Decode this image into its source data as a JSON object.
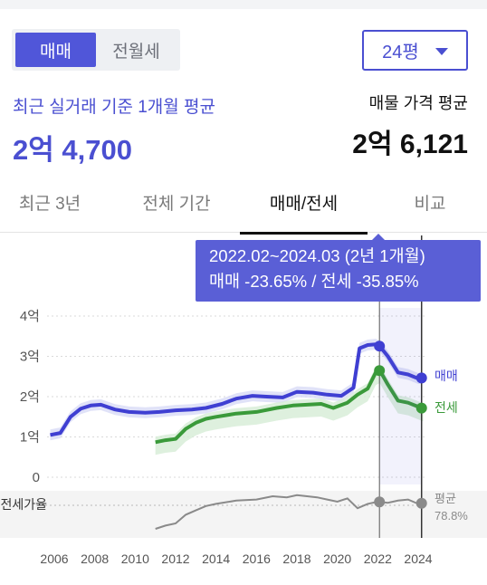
{
  "trade_toggle": {
    "options": [
      "매매",
      "전월세"
    ],
    "selected": "매매"
  },
  "size_select": {
    "value": "24평"
  },
  "summary": {
    "recent_label": "최근 실거래 기준 1개월 평균",
    "recent_value": "2억 4,700",
    "listing_label": "매물 가격 평균",
    "listing_value": "2억 6,121"
  },
  "tabs": [
    {
      "label": "최근 3년",
      "active": false
    },
    {
      "label": "전체 기간",
      "active": false
    },
    {
      "label": "매매/전세",
      "active": true
    },
    {
      "label": "비교",
      "active": false
    }
  ],
  "tooltip": {
    "line1": "2022.02~2024.03 (2년 1개월)",
    "line2": "매매 -23.65%  /  전세 -35.85%"
  },
  "colors": {
    "sale": "#3f3fd2",
    "jeonse": "#3a9a3a",
    "ratio": "#8a8a8a",
    "accent": "#5056d9"
  },
  "chart_data": {
    "type": "line",
    "x_ticks": [
      "2006",
      "2008",
      "2010",
      "2012",
      "2014",
      "2016",
      "2018",
      "2020",
      "2022",
      "2024"
    ],
    "y_ticks": [
      "4억",
      "3억",
      "2억",
      "1억",
      "0"
    ],
    "ylim": [
      0,
      4
    ],
    "xlim": [
      2005.5,
      2024.8
    ],
    "series": [
      {
        "name": "매매",
        "color": "#3f3fd2",
        "x": [
          2005.8,
          2006.3,
          2006.8,
          2007.3,
          2007.8,
          2008.3,
          2009.0,
          2009.7,
          2010.5,
          2011.2,
          2012.0,
          2012.8,
          2013.5,
          2014.3,
          2015.0,
          2015.8,
          2016.5,
          2017.3,
          2018.0,
          2018.8,
          2019.5,
          2020.2,
          2020.8,
          2021.1,
          2021.5,
          2021.9,
          2022.1,
          2022.5,
          2023.0,
          2023.5,
          2024.0,
          2024.25
        ],
        "y": [
          1.05,
          1.1,
          1.5,
          1.7,
          1.78,
          1.8,
          1.68,
          1.62,
          1.6,
          1.62,
          1.66,
          1.68,
          1.72,
          1.82,
          1.95,
          2.02,
          2.0,
          1.98,
          2.12,
          2.1,
          2.05,
          2.02,
          2.22,
          3.2,
          3.28,
          3.3,
          3.25,
          3.0,
          2.6,
          2.55,
          2.45,
          2.47
        ]
      },
      {
        "name": "전세",
        "color": "#3a9a3a",
        "x": [
          2011.0,
          2011.5,
          2012.0,
          2012.5,
          2013.0,
          2013.5,
          2014.0,
          2015.0,
          2016.0,
          2017.0,
          2017.8,
          2018.5,
          2019.2,
          2019.8,
          2020.5,
          2021.0,
          2021.5,
          2021.9,
          2022.1,
          2022.5,
          2023.0,
          2023.5,
          2024.0,
          2024.25
        ],
        "y": [
          0.87,
          0.92,
          0.95,
          1.2,
          1.35,
          1.45,
          1.5,
          1.58,
          1.62,
          1.72,
          1.78,
          1.8,
          1.82,
          1.72,
          1.85,
          2.05,
          2.2,
          2.6,
          2.65,
          2.3,
          1.9,
          1.85,
          1.75,
          1.7
        ]
      }
    ],
    "jeonse_ratio": {
      "label": "전세가율",
      "x": [
        2011.0,
        2011.5,
        2012.0,
        2012.5,
        2013.0,
        2013.5,
        2014.0,
        2015.0,
        2016.0,
        2016.8,
        2017.5,
        2018.0,
        2018.5,
        2019.0,
        2019.5,
        2020.0,
        2020.5,
        2021.0,
        2021.5,
        2022.0,
        2022.5,
        2023.0,
        2023.5,
        2024.0,
        2024.25
      ],
      "y": [
        55,
        58,
        60,
        68,
        72,
        76,
        78,
        81,
        82,
        85,
        84,
        86,
        85,
        84,
        82,
        80,
        83,
        74,
        78,
        80,
        79,
        81,
        82,
        78,
        78.8
      ],
      "avg_label": "평균",
      "avg_value": "78.8%"
    },
    "selection_range": [
      "2022.02",
      "2024.03"
    ],
    "sale_label": "매매",
    "jeonse_label": "전세"
  }
}
